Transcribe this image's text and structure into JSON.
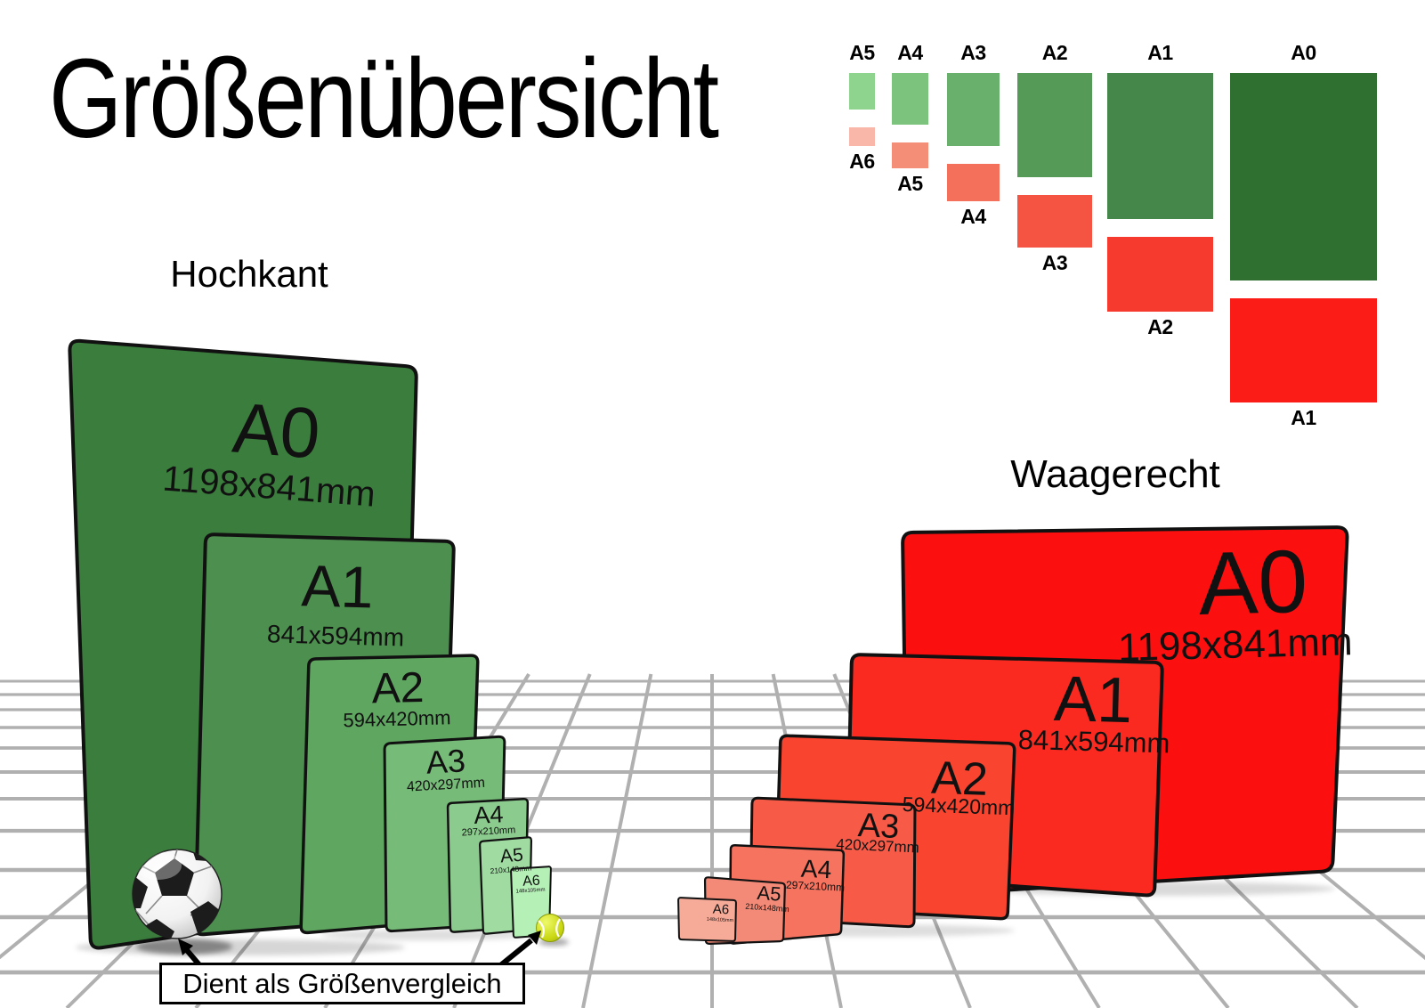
{
  "title": "Größenübersicht",
  "portrait_section": {
    "label": "Hochkant"
  },
  "landscape_section": {
    "label": "Waagerecht"
  },
  "mini_chart": {
    "top_labels": [
      "A5",
      "A4",
      "A3",
      "A2",
      "A1",
      "A0"
    ],
    "bottom_labels": [
      "A6",
      "A5",
      "A4",
      "A3",
      "A2",
      "A1"
    ],
    "green_colors": [
      "#8ed48e",
      "#7cc47e",
      "#68b06b",
      "#569a58",
      "#45864a",
      "#2f7031"
    ],
    "red_colors": [
      "#f8b7a9",
      "#f58e76",
      "#f4705a",
      "#f45441",
      "#f63a2e",
      "#fb1b17"
    ]
  },
  "sheets_portrait": [
    {
      "name": "A0",
      "dims": "1198x841mm"
    },
    {
      "name": "A1",
      "dims": "841x594mm"
    },
    {
      "name": "A2",
      "dims": "594x420mm"
    },
    {
      "name": "A3",
      "dims": "420x297mm"
    },
    {
      "name": "A4",
      "dims": "297x210mm"
    },
    {
      "name": "A5",
      "dims": "210x148mm"
    },
    {
      "name": "A6",
      "dims": "148x105mm"
    }
  ],
  "sheets_landscape": [
    {
      "name": "A0",
      "dims": "1198x841mm"
    },
    {
      "name": "A1",
      "dims": "841x594mm"
    },
    {
      "name": "A2",
      "dims": "594x420mm"
    },
    {
      "name": "A3",
      "dims": "420x297mm"
    },
    {
      "name": "A4",
      "dims": "297x210mm"
    },
    {
      "name": "A5",
      "dims": "210x148mm"
    },
    {
      "name": "A6",
      "dims": "148x105mm"
    }
  ],
  "caption": "Dient als Größenvergleich",
  "colors": {
    "portrait_sheets": [
      "#3b7d3d",
      "#4c8f4e",
      "#5fa661",
      "#76bb78",
      "#8bcb8d",
      "#a0dca2",
      "#b5f0b7"
    ],
    "landscape_sheets": [
      "#fc0f0f",
      "#fb2a20",
      "#f9452f",
      "#f75b48",
      "#f5735f",
      "#f28a77",
      "#f6ab99"
    ],
    "grid": "#b0b0b0",
    "sheet_border": "#111111",
    "soccer_patch": "#1c1c1c",
    "tennis_ball": "#c9d713"
  }
}
